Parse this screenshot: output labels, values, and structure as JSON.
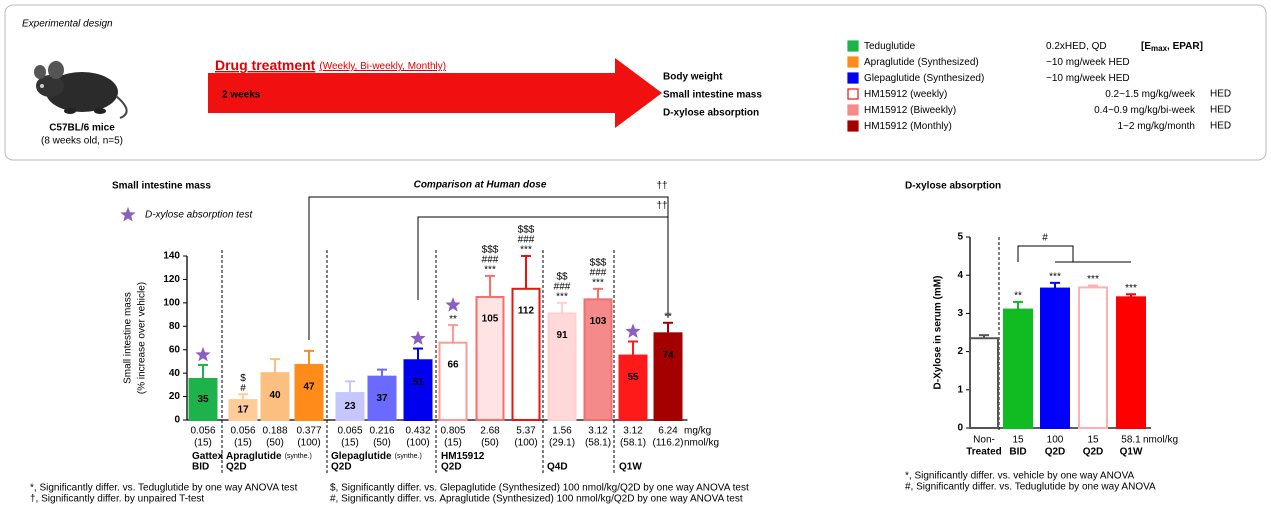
{
  "design": {
    "title": "Experimental design",
    "subject": "C57BL/6 mice",
    "subject_note": "(8 weeks old, n=5)",
    "treatment": "Drug treatment",
    "treatment_schedule": "(Weekly, Bi-weekly, Monthly)",
    "duration": "2 weeks",
    "endpoints": [
      "Body weight",
      "Small intestine mass",
      "D-xylose absorption"
    ],
    "legend": [
      {
        "name": "Teduglutide",
        "dose": "0.2xHED, QD",
        "reference": [
          "[E",
          "max",
          ", EPAR]"
        ],
        "color": "#1db34a"
      },
      {
        "name": "Apraglutide",
        "note": "(Synthesized)",
        "dose": "~10 mg/week HED",
        "color": "#ff8c1a"
      },
      {
        "name": "Glepaglutide",
        "note": "(Synthesized)",
        "dose": "~10 mg/week HED",
        "color": "#0000ee"
      },
      {
        "name": "HM15912 (weekly)",
        "dose": "0.2~1.5 mg/kg/week",
        "unit": "HED",
        "color": "#ffffff",
        "edge_color": "#ee1111"
      },
      {
        "name": "HM15912 (Biweekly)",
        "dose": "0.4~0.9 mg/kg/bi-week",
        "unit": "HED",
        "color": "#f58a8a"
      },
      {
        "name": "HM15912 (Monthly)",
        "dose": "1~2 mg/kg/month",
        "unit": "HED",
        "color": "#a50000"
      }
    ]
  },
  "chart_data": [
    {
      "type": "bar",
      "title": "Small intestine mass",
      "subtitle": "Comparison at Human dose",
      "y_label": "Small intestine mass",
      "y_sublabel": "(% increase over vehicle)",
      "legend": "D-xylose absorption test",
      "ylim": [
        0,
        140
      ],
      "yticks": [
        0,
        20,
        40,
        60,
        80,
        100,
        120,
        140
      ],
      "values": [
        35,
        17,
        40,
        47,
        23,
        37,
        51,
        66,
        105,
        112,
        91,
        103,
        55,
        74
      ],
      "errors": [
        12,
        5,
        12,
        12,
        10,
        6,
        10,
        15,
        18,
        28,
        9,
        9,
        12,
        9
      ],
      "colors": [
        "#1db34a",
        "#ffcc99",
        "#fdbf7f",
        "#ff8c1a",
        "#c6c6ff",
        "#6a6aff",
        "#0000ee",
        "#ffffff",
        "#ffe4e4",
        "#ffffff",
        "#ffd9d9",
        "#f58a8a",
        "#ff1a1a",
        "#a50000"
      ],
      "edge_colors": [
        "#1db34a",
        "#ffcc99",
        "#fdbf7f",
        "#ff8c1a",
        "#c6c6ff",
        "#6a6aff",
        "#0000ee",
        "#ff9999",
        "#ff6b6b",
        "#ee1111",
        "#ffd0d0",
        "#f07070",
        "#ff1a1a",
        "#a50000"
      ],
      "dose_mg_per_kg": [
        "0.056",
        "0.056",
        "0.188",
        "0.377",
        "0.065",
        "0.216",
        "0.432",
        "0.805",
        "2.68",
        "5.37",
        "1.56",
        "3.12",
        "3.12",
        "6.24"
      ],
      "dose_nmol_per_kg": [
        "(15)",
        "(15)",
        "(50)",
        "(100)",
        "(15)",
        "(50)",
        "(100)",
        "(15)",
        "(50)",
        "(100)",
        "(29.1)",
        "(58.1)",
        "(58.1)",
        "(116.2)"
      ],
      "dose_units": [
        "mg/kg",
        "nmol/kg"
      ],
      "groups": [
        {
          "label": "Gattex",
          "regimen": "BID"
        },
        {
          "label": "Apraglutide",
          "note": "(synthe.)",
          "regimen": "Q2D"
        },
        {
          "label": "Glepaglutide",
          "note": "(synthe.)",
          "regimen": "Q2D"
        },
        {
          "label": "HM15912",
          "regimen": "Q2D"
        },
        {
          "regimen": "Q4D"
        },
        {
          "regimen": "Q1W"
        }
      ],
      "significance": [
        [],
        [
          "$",
          "#"
        ],
        [],
        [],
        [],
        [],
        [],
        [
          "**"
        ],
        [
          "$$$",
          "###",
          "***"
        ],
        [
          "$$$",
          "###",
          "***"
        ],
        [
          "$$",
          "###",
          "***"
        ],
        [
          "$$$",
          "###",
          "***"
        ],
        [],
        [
          "**"
        ]
      ],
      "xylose_test": [
        true,
        false,
        false,
        false,
        false,
        false,
        true,
        true,
        false,
        false,
        false,
        false,
        true,
        false
      ],
      "brackets": [
        "††",
        "††"
      ],
      "footnotes": [
        "*, Significantly differ. vs. Teduglutide by one way ANOVA test",
        "†, Significantly differ. by unpaired T-test",
        "$, Significantly differ. vs. Glepaglutide (Synthesized) 100 nmol/kg/Q2D by one way ANOVA test",
        "#, Significantly differ. vs. Apraglutide (Synthesized) 100 nmol/kg/Q2D by one way ANOVA test"
      ]
    },
    {
      "type": "bar",
      "title": "D-xylose absorption",
      "y_label": "D-Xylose in serum (mM)",
      "ylim": [
        0,
        5
      ],
      "yticks": [
        0,
        1,
        2,
        3,
        4,
        5
      ],
      "categories": [
        [
          "Non-",
          "Treated"
        ],
        [
          "15",
          "BID"
        ],
        [
          "100",
          "Q2D"
        ],
        [
          "15",
          "Q2D"
        ],
        [
          "58.1",
          "Q1W"
        ]
      ],
      "x_unit": "nmol/kg",
      "values": [
        2.35,
        3.1,
        3.65,
        3.68,
        3.42
      ],
      "errors": [
        0.08,
        0.2,
        0.15,
        0.05,
        0.08
      ],
      "colors": [
        "#ffffff",
        "#11bb22",
        "#0000ff",
        "#ffffff",
        "#ff0000"
      ],
      "edge_colors": [
        "#555555",
        "#11bb22",
        "#0000ff",
        "#ffb0b0",
        "#ff0000"
      ],
      "significance": [
        [],
        [
          "**"
        ],
        [
          "***"
        ],
        [
          "***"
        ],
        [
          "***"
        ]
      ],
      "brackets": [
        "#"
      ],
      "footnotes": [
        "*, Significantly differ. vs. vehicle by one way ANOVA",
        "#, Significantly differ. vs. Teduglutide by one way ANOVA"
      ]
    }
  ]
}
